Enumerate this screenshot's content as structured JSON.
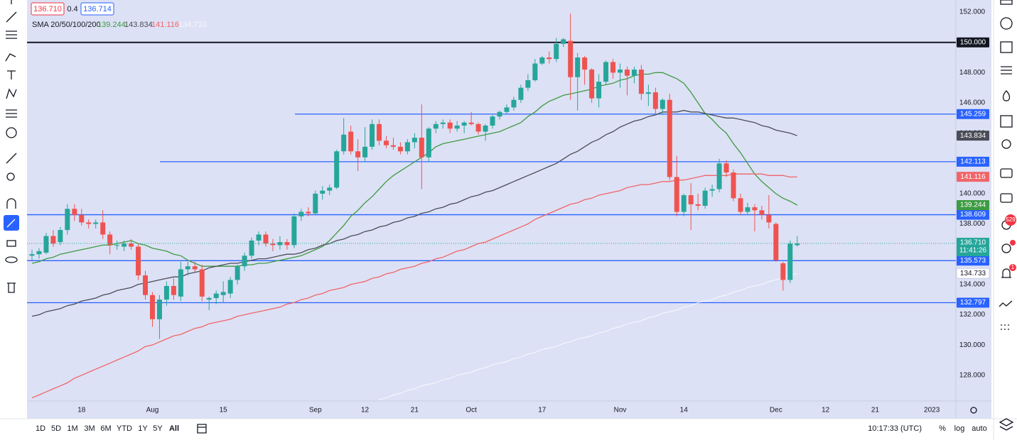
{
  "chart_data": {
    "type": "candlestick",
    "categories": [
      null,
      null,
      null,
      null,
      null,
      null,
      null,
      "18",
      null,
      null,
      null,
      null,
      null,
      null,
      null,
      null,
      null,
      "Aug",
      null,
      null,
      null,
      null,
      null,
      null,
      null,
      null,
      null,
      "15",
      null,
      null,
      null,
      null,
      null,
      null,
      null,
      null,
      null,
      null,
      null,
      null,
      "Sep",
      null,
      null,
      null,
      null,
      null,
      null,
      "12",
      null,
      null,
      null,
      null,
      null,
      null,
      "21",
      null,
      null,
      null,
      null,
      null,
      null,
      null,
      "Oct",
      null,
      null,
      null,
      null,
      null,
      null,
      null,
      null,
      null,
      "17",
      null,
      null,
      null,
      null,
      null,
      null,
      null,
      null,
      null,
      null,
      "Nov",
      null,
      null,
      null,
      null,
      null,
      null,
      null,
      null,
      "14",
      null,
      null,
      null,
      null,
      null,
      null,
      null,
      null,
      null,
      null,
      null,
      null,
      "Dec",
      null,
      null,
      null,
      null,
      null,
      null,
      "12",
      null,
      null,
      null,
      null,
      null,
      null,
      "21",
      null,
      null,
      null,
      null,
      null,
      null,
      null,
      "2023"
    ],
    "open": [
      135.9,
      136.0,
      136.1,
      137.2,
      136.8,
      137.6,
      139.0,
      138.6,
      138.1,
      138.0,
      138.1,
      137.3,
      136.6,
      136.5,
      136.7,
      136.5,
      134.6,
      133.3,
      131.7,
      133.0,
      133.9,
      133.2,
      135.0,
      135.2,
      135.0,
      133.0,
      133.1,
      133.3,
      133.4,
      134.3,
      135.2,
      135.9,
      136.9,
      137.3,
      136.7,
      136.6,
      136.8,
      136.6,
      138.5,
      138.8,
      138.7,
      140.0,
      140.2,
      140.4,
      142.8,
      144.1,
      142.8,
      142.4,
      143.1,
      144.6,
      143.5,
      143.2,
      143.1,
      142.8,
      143.4,
      143.7,
      142.4,
      144.3,
      144.6,
      144.7,
      144.3,
      144.5,
      144.7,
      144.6,
      144.1,
      144.5,
      145.1,
      145.4,
      145.7,
      146.2,
      147.0,
      147.5,
      148.6,
      149.0,
      148.9,
      149.9,
      150.1,
      147.7,
      149.0,
      148.2,
      146.3,
      147.4,
      148.7,
      148.0,
      148.2,
      147.8,
      148.2,
      146.6,
      146.7,
      145.6,
      146.2,
      141.1,
      138.8,
      139.9,
      139.3,
      139.2,
      140.2,
      140.3,
      142.0,
      141.4,
      139.7,
      138.8,
      139.1,
      138.9,
      138.6,
      138.0,
      135.4,
      134.3,
      136.6,
      null,
      null,
      null,
      null,
      null,
      null,
      null,
      null,
      null,
      null,
      null,
      null,
      null,
      null,
      null,
      null,
      null,
      null,
      null
    ],
    "high": [
      136.3,
      136.4,
      137.4,
      137.6,
      137.8,
      139.3,
      139.3,
      139.0,
      138.3,
      138.3,
      138.9,
      137.5,
      136.9,
      136.9,
      137.0,
      136.7,
      134.9,
      133.5,
      133.3,
      134.2,
      134.4,
      135.5,
      135.5,
      135.5,
      135.3,
      133.2,
      133.6,
      134.2,
      134.5,
      135.3,
      136.1,
      137.1,
      137.5,
      137.5,
      137.0,
      137.2,
      137.0,
      138.7,
      139.0,
      139.1,
      140.2,
      140.5,
      140.6,
      142.9,
      145.0,
      144.5,
      143.6,
      144.4,
      144.9,
      144.9,
      143.8,
      143.7,
      143.4,
      143.6,
      144.0,
      145.9,
      144.4,
      144.8,
      144.9,
      144.9,
      144.8,
      144.8,
      145.4,
      144.7,
      144.6,
      145.2,
      145.5,
      145.9,
      146.4,
      147.2,
      147.9,
      148.9,
      149.1,
      149.4,
      150.3,
      150.3,
      151.9,
      149.3,
      149.1,
      148.3,
      147.9,
      148.8,
      148.9,
      148.6,
      148.4,
      148.4,
      148.5,
      147.2,
      147.0,
      146.3,
      146.6,
      142.5,
      140.0,
      140.7,
      140.0,
      140.4,
      140.6,
      142.3,
      142.2,
      141.6,
      140.0,
      139.4,
      139.3,
      139.2,
      139.9,
      138.1,
      135.5,
      136.9,
      137.2,
      null,
      null,
      null,
      null,
      null,
      null,
      null,
      null,
      null,
      null,
      null,
      null,
      null,
      null,
      null,
      null,
      null,
      null,
      null
    ],
    "low": [
      135.6,
      135.7,
      136.0,
      136.5,
      136.6,
      137.3,
      138.2,
      137.9,
      137.7,
      137.7,
      137.0,
      136.0,
      136.3,
      136.2,
      136.3,
      134.3,
      133.0,
      131.2,
      130.4,
      132.6,
      133.0,
      132.9,
      134.6,
      134.8,
      132.9,
      132.3,
      132.7,
      132.8,
      133.1,
      134.0,
      134.9,
      135.7,
      136.6,
      136.5,
      136.2,
      136.3,
      136.3,
      136.4,
      138.2,
      138.5,
      138.6,
      139.6,
      139.9,
      140.3,
      142.6,
      142.6,
      141.5,
      142.1,
      142.9,
      143.2,
      143.0,
      142.9,
      142.6,
      142.6,
      143.0,
      140.3,
      142.1,
      144.0,
      144.3,
      144.0,
      144.1,
      144.0,
      144.5,
      143.9,
      143.5,
      144.3,
      144.9,
      145.3,
      145.5,
      146.0,
      146.8,
      147.4,
      148.5,
      148.6,
      148.7,
      149.7,
      146.2,
      145.5,
      147.2,
      146.0,
      145.7,
      147.2,
      147.6,
      147.0,
      146.5,
      147.3,
      146.2,
      145.8,
      145.2,
      145.2,
      140.9,
      138.5,
      138.5,
      137.6,
      138.9,
      139.0,
      139.8,
      140.1,
      141.1,
      139.5,
      138.6,
      138.6,
      137.5,
      138.3,
      137.7,
      135.5,
      133.6,
      134.1,
      136.5,
      null,
      null,
      null,
      null,
      null,
      null,
      null,
      null,
      null,
      null,
      null,
      null,
      null,
      null,
      null,
      null,
      null,
      null,
      null
    ],
    "close": [
      136.0,
      136.2,
      137.2,
      136.7,
      137.6,
      139.0,
      138.6,
      138.1,
      138.0,
      138.1,
      137.3,
      136.6,
      136.6,
      136.7,
      136.5,
      134.6,
      133.3,
      131.7,
      133.0,
      133.9,
      133.3,
      135.0,
      135.2,
      135.0,
      133.2,
      133.1,
      133.4,
      133.5,
      134.3,
      135.2,
      135.9,
      136.9,
      137.3,
      136.7,
      136.6,
      136.8,
      136.6,
      138.5,
      138.8,
      138.7,
      140.0,
      140.2,
      140.4,
      142.8,
      143.9,
      142.8,
      142.4,
      143.1,
      144.6,
      143.5,
      143.2,
      143.1,
      142.8,
      143.4,
      143.7,
      142.4,
      144.3,
      144.6,
      144.7,
      144.3,
      144.5,
      144.7,
      144.6,
      144.1,
      144.5,
      145.1,
      145.4,
      145.7,
      146.2,
      147.0,
      147.5,
      148.6,
      149.0,
      148.9,
      149.9,
      150.2,
      147.7,
      149.0,
      148.2,
      146.3,
      147.4,
      148.7,
      148.0,
      148.2,
      147.8,
      148.2,
      146.6,
      146.7,
      145.6,
      146.2,
      141.1,
      138.8,
      139.9,
      139.3,
      139.2,
      140.2,
      140.3,
      142.0,
      141.4,
      139.7,
      138.8,
      139.1,
      138.9,
      138.6,
      138.1,
      135.6,
      134.3,
      136.7,
      136.71,
      null,
      null,
      null,
      null,
      null,
      null,
      null,
      null,
      null,
      null,
      null,
      null,
      null,
      null,
      null,
      null,
      null,
      null,
      null
    ],
    "up_color": "#26a69a",
    "down_color": "#ef5350",
    "ylim": [
      126.3,
      152.8
    ],
    "yticks": [
      {
        "value": 128,
        "label": "128.000"
      },
      {
        "value": 130,
        "label": "130.000"
      },
      {
        "value": 132,
        "label": "132.000"
      },
      {
        "value": 134,
        "label": "134.000"
      },
      {
        "value": 136,
        "label": "136.000"
      },
      {
        "value": 138,
        "label": "138.000"
      },
      {
        "value": 140,
        "label": "140.000"
      },
      {
        "value": 142,
        "label": "142.000"
      },
      {
        "value": 144,
        "label": "144.000"
      },
      {
        "value": 146,
        "label": "146.000"
      },
      {
        "value": 148,
        "label": "148.000"
      },
      {
        "value": 150,
        "label": "150.000"
      },
      {
        "value": 152,
        "label": "152.000"
      }
    ],
    "grid": false,
    "series": [
      {
        "color": "#3d9b41",
        "label_text_color": "#ffffff",
        "last_label": "139.244",
        "values": [
          135.4,
          135.5,
          135.7,
          135.8,
          136.0,
          136.1,
          136.2,
          136.3,
          136.4,
          136.5,
          136.6,
          136.6,
          136.7,
          136.8,
          136.9,
          136.7,
          136.6,
          136.4,
          136.3,
          136.2,
          136.0,
          135.9,
          135.6,
          135.4,
          135.2,
          135.2,
          135.2,
          135.2,
          135.2,
          135.2,
          135.3,
          135.3,
          135.4,
          135.4,
          135.5,
          135.6,
          135.7,
          135.8,
          135.9,
          136.1,
          136.3,
          136.5,
          136.9,
          137.4,
          137.9,
          138.5,
          138.9,
          139.4,
          139.8,
          140.3,
          140.8,
          141.2,
          141.5,
          141.8,
          142.1,
          142.4,
          142.7,
          143.1,
          143.3,
          143.4,
          143.5,
          143.6,
          143.7,
          143.8,
          143.9,
          144.0,
          144.1,
          144.3,
          144.5,
          144.7,
          145.1,
          145.4,
          145.8,
          146.1,
          146.3,
          146.5,
          146.6,
          146.7,
          146.8,
          146.9,
          147.1,
          147.2,
          147.3,
          147.5,
          147.6,
          147.8,
          147.9,
          147.9,
          148.0,
          148.0,
          147.8,
          147.6,
          147.3,
          146.7,
          146.0,
          145.3,
          144.9,
          144.4,
          144.0,
          143.3,
          142.7,
          142.0,
          141.3,
          140.8,
          140.4,
          140.0,
          139.7,
          139.5,
          139.244,
          null,
          null,
          null,
          null,
          null,
          null,
          null,
          null,
          null,
          null,
          null,
          null,
          null,
          null,
          null,
          null,
          null,
          null,
          null
        ]
      },
      {
        "color": "#4a4d57",
        "label_text_color": "#ffffff",
        "last_label": "143.834",
        "values": [
          131.9,
          132.0,
          132.2,
          132.3,
          132.4,
          132.6,
          132.7,
          132.9,
          133.0,
          133.1,
          133.3,
          133.4,
          133.6,
          133.7,
          133.8,
          134.0,
          134.1,
          134.2,
          134.3,
          134.4,
          134.5,
          134.5,
          134.7,
          134.8,
          134.9,
          135.1,
          135.2,
          135.3,
          135.4,
          135.4,
          135.5,
          135.6,
          135.7,
          135.7,
          135.8,
          135.9,
          136.0,
          136.0,
          136.1,
          136.3,
          136.4,
          136.6,
          136.7,
          136.9,
          137.0,
          137.2,
          137.3,
          137.5,
          137.6,
          137.8,
          137.9,
          138.1,
          138.2,
          138.4,
          138.5,
          138.7,
          138.8,
          139.0,
          139.1,
          139.3,
          139.4,
          139.6,
          139.8,
          139.9,
          140.1,
          140.2,
          140.4,
          140.6,
          140.8,
          141.0,
          141.2,
          141.4,
          141.6,
          141.8,
          142.0,
          142.3,
          142.6,
          142.8,
          143.1,
          143.4,
          143.6,
          143.9,
          144.1,
          144.4,
          144.6,
          144.8,
          144.9,
          145.1,
          145.2,
          145.4,
          145.4,
          145.4,
          145.5,
          145.4,
          145.4,
          145.3,
          145.2,
          145.1,
          145.0,
          145.0,
          144.9,
          144.8,
          144.7,
          144.5,
          144.4,
          144.2,
          144.1,
          144.0,
          143.834,
          null,
          null,
          null,
          null,
          null,
          null,
          null,
          null,
          null,
          null,
          null,
          null,
          null,
          null,
          null,
          null,
          null,
          null,
          null
        ]
      },
      {
        "color": "#f06569",
        "label_text_color": "#ffffff",
        "last_label": "141.116",
        "values": [
          126.5,
          126.7,
          126.9,
          127.1,
          127.3,
          127.5,
          127.8,
          128.0,
          128.2,
          128.4,
          128.6,
          128.8,
          129.0,
          129.2,
          129.4,
          129.6,
          129.9,
          130.0,
          130.2,
          130.4,
          130.6,
          130.7,
          130.9,
          131.1,
          131.2,
          131.4,
          131.5,
          131.6,
          131.7,
          131.9,
          132.0,
          132.1,
          132.2,
          132.3,
          132.4,
          132.5,
          132.7,
          132.8,
          133.0,
          133.1,
          133.3,
          133.4,
          133.6,
          133.7,
          133.8,
          134.0,
          134.1,
          134.2,
          134.4,
          134.5,
          134.7,
          134.8,
          135.0,
          135.1,
          135.2,
          135.4,
          135.5,
          135.7,
          135.8,
          136.0,
          136.2,
          136.3,
          136.5,
          136.7,
          136.8,
          137.0,
          137.2,
          137.4,
          137.6,
          137.8,
          138.0,
          138.3,
          138.5,
          138.7,
          138.9,
          139.1,
          139.3,
          139.4,
          139.6,
          139.7,
          139.9,
          140.0,
          140.1,
          140.2,
          140.4,
          140.5,
          140.6,
          140.6,
          140.7,
          140.8,
          140.8,
          140.9,
          140.9,
          141.0,
          141.1,
          141.2,
          141.2,
          141.2,
          141.2,
          141.3,
          141.3,
          141.3,
          141.3,
          141.3,
          141.2,
          141.2,
          141.2,
          141.1,
          141.116,
          null,
          null,
          null,
          null,
          null,
          null,
          null,
          null,
          null,
          null,
          null,
          null,
          null,
          null,
          null,
          null,
          null,
          null,
          null
        ]
      },
      {
        "color": "#ffffff",
        "label_text_color": "#131722",
        "last_label": "134.733",
        "values": [
          null,
          null,
          null,
          null,
          null,
          null,
          null,
          null,
          null,
          null,
          null,
          null,
          null,
          null,
          null,
          null,
          null,
          null,
          null,
          null,
          null,
          null,
          null,
          null,
          null,
          null,
          null,
          null,
          null,
          null,
          null,
          null,
          null,
          null,
          null,
          null,
          null,
          null,
          null,
          null,
          null,
          null,
          null,
          null,
          null,
          null,
          null,
          null,
          null,
          126.4,
          126.5,
          126.7,
          126.8,
          127.0,
          127.1,
          127.3,
          127.4,
          127.5,
          127.7,
          127.8,
          128.0,
          128.1,
          128.2,
          128.4,
          128.5,
          128.7,
          128.8,
          128.9,
          129.1,
          129.2,
          129.4,
          129.5,
          129.7,
          129.8,
          129.9,
          130.1,
          130.2,
          130.4,
          130.5,
          130.6,
          130.8,
          130.9,
          131.1,
          131.2,
          131.4,
          131.5,
          131.6,
          131.8,
          131.9,
          132.1,
          132.2,
          132.3,
          132.5,
          132.6,
          132.8,
          132.9,
          133.0,
          133.2,
          133.3,
          133.5,
          133.6,
          133.8,
          133.9,
          134.0,
          134.2,
          134.3,
          134.5,
          134.6,
          134.733,
          null,
          null,
          null,
          null,
          null,
          null,
          null,
          null,
          null,
          null,
          null,
          null,
          null,
          null,
          null,
          null,
          null,
          null,
          null
        ]
      }
    ],
    "hlines": [
      {
        "value": 150,
        "label": "150.000",
        "color": "#131722"
      },
      {
        "value": 145.259,
        "label": "145.259",
        "color": "#2962ff"
      },
      {
        "value": 142.113,
        "label": "142.113",
        "color": "#2962ff"
      },
      {
        "value": 138.609,
        "label": "138.609",
        "color": "#2962ff"
      },
      {
        "value": 135.573,
        "label": "135.573",
        "color": "#2962ff"
      },
      {
        "value": 132.797,
        "label": "132.797",
        "color": "#2962ff"
      }
    ],
    "last_price_label": "136.710",
    "countdown": "11:41:26",
    "last_color": "#26a69a"
  },
  "ui": {
    "quote": {
      "bid": "136.710",
      "spread": "0.4",
      "ask": "136.714"
    },
    "indicator": "SMA 20/50/100/200",
    "timeframes": [
      "1D",
      "5D",
      "1M",
      "3M",
      "6M",
      "YTD",
      "1Y",
      "5Y",
      "All"
    ],
    "clock": "10:17:33 (UTC)",
    "scale_buttons": [
      "%",
      "log",
      "auto"
    ],
    "badges": [
      "529",
      "1"
    ]
  }
}
